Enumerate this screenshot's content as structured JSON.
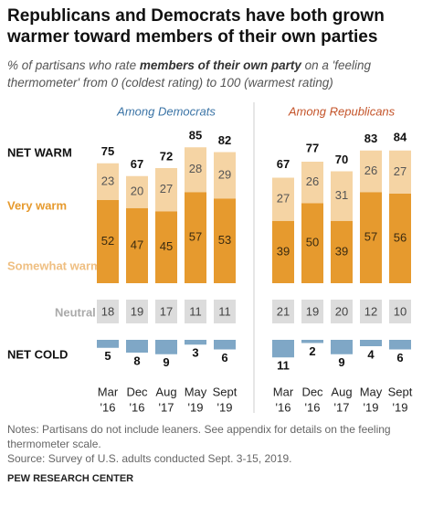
{
  "chart_data": {
    "type": "stacked-bar",
    "title": "Republicans and Democrats have both grown warmer toward members of their own parties",
    "subtitle": [
      "% of partisans who rate ",
      "members of their own party",
      " on a 'feeling thermometer' from 0 (coldest rating) to 100 (warmest rating)"
    ],
    "categories": [
      [
        "Mar",
        "'16"
      ],
      [
        "Dec",
        "'16"
      ],
      [
        "Aug",
        "'17"
      ],
      [
        "May",
        "'19"
      ],
      [
        "Sept",
        "'19"
      ]
    ],
    "rows": {
      "net_warm": "NET WARM",
      "neutral": "Neutral",
      "net_cold": "NET COLD"
    },
    "series": [
      {
        "name": "Very warm",
        "color": "#e69a2e"
      },
      {
        "name": "Somewhat warm",
        "color": "#f5d4a4"
      }
    ],
    "panels": [
      {
        "title": "Among Democrats",
        "color": "#3b74a6",
        "series": [
          {
            "values": [
              52,
              47,
              45,
              57,
              53
            ]
          },
          {
            "values": [
              23,
              20,
              27,
              28,
              29
            ]
          }
        ],
        "net_warm": [
          75,
          67,
          72,
          85,
          82
        ],
        "neutral": [
          18,
          19,
          17,
          11,
          11
        ],
        "net_cold": [
          5,
          8,
          9,
          3,
          6
        ]
      },
      {
        "title": "Among Republicans",
        "color": "#c4542a",
        "series": [
          {
            "values": [
              39,
              50,
              39,
              57,
              56
            ]
          },
          {
            "values": [
              27,
              26,
              31,
              26,
              27
            ]
          }
        ],
        "net_warm": [
          67,
          77,
          70,
          83,
          84
        ],
        "neutral": [
          21,
          19,
          20,
          12,
          10
        ],
        "net_cold": [
          11,
          2,
          9,
          4,
          6
        ]
      }
    ],
    "notes": "Notes: Partisans do not include leaners. See appendix for details on the feeling thermometer scale.",
    "source": "Source: Survey of U.S. adults conducted Sept. 3-15, 2019.",
    "footer": "PEW RESEARCH CENTER"
  }
}
